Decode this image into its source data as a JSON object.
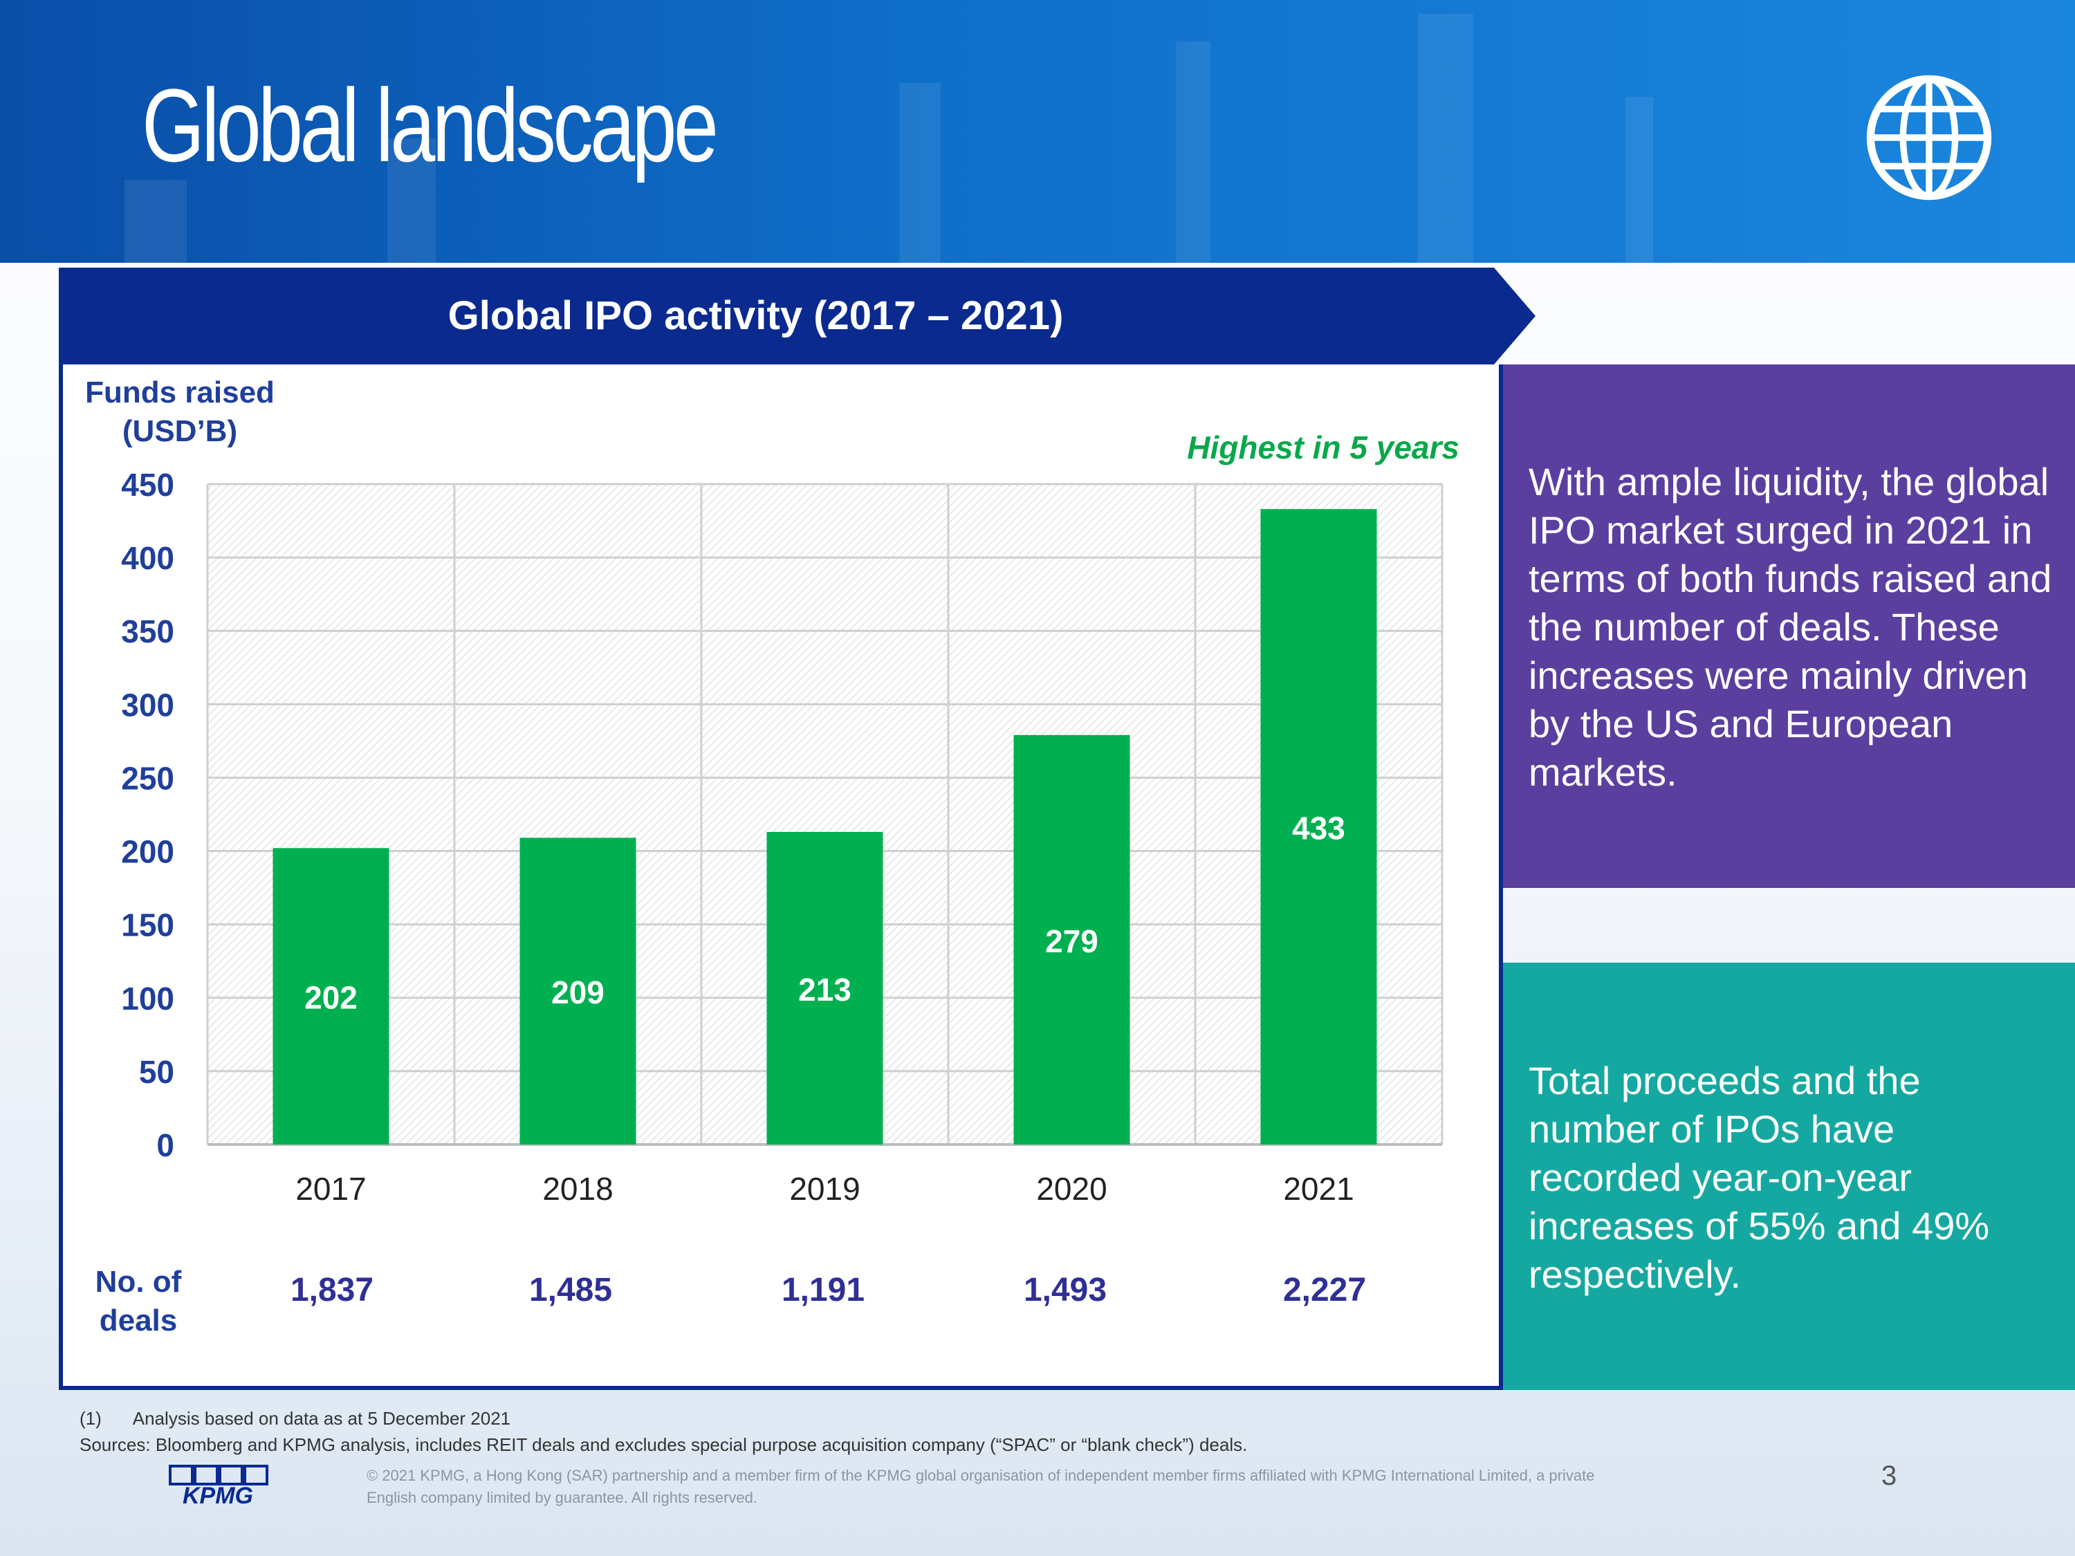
{
  "header": {
    "title": "Global landscape"
  },
  "banner": {
    "title": "Global IPO activity (2017 – 2021)"
  },
  "chart_axis": {
    "ylabel_line1": "Funds raised",
    "ylabel_line2": "(USD’B)"
  },
  "annotation": "Highest in 5 years",
  "deals": {
    "label_line1": "No. of",
    "label_line2": "deals",
    "values": [
      "1,837",
      "1,485",
      "1,191",
      "1,493",
      "2,227"
    ]
  },
  "chart_data": {
    "type": "bar",
    "title": "Global IPO activity (2017 – 2021)",
    "xlabel": "",
    "ylabel": "Funds raised (USD’B)",
    "categories": [
      "2017",
      "2018",
      "2019",
      "2020",
      "2021"
    ],
    "values": [
      202,
      209,
      213,
      279,
      433
    ],
    "ylim": [
      0,
      450
    ],
    "yticks": [
      0,
      50,
      100,
      150,
      200,
      250,
      300,
      350,
      400,
      450
    ],
    "grid": true,
    "bar_color": "#00b050"
  },
  "panels": {
    "purple": {
      "text": "With ample liquidity, the global IPO market surged in 2021 in terms of both funds raised and the number of deals. These increases were mainly driven by the US and European markets."
    },
    "teal": {
      "text": "Total proceeds and the number of IPOs have recorded year-on-year increases of 55% and 49% respectively."
    }
  },
  "footer": {
    "note_num": "(1)",
    "note": "Analysis based on data as at 5 December 2021",
    "sources": "Sources: Bloomberg and KPMG analysis, includes REIT deals and excludes special purpose acquisition company (“SPAC” or “blank check”) deals.",
    "copyright_line1": "© 2021 KPMG, a Hong Kong (SAR) partnership and a member firm of the KPMG global organisation of independent member firms affiliated with KPMG International Limited, a private",
    "copyright_line2": "English company limited by guarantee. All rights reserved.",
    "page_number": "3",
    "logo_text": "KPMG"
  },
  "colors": {
    "navy": "#0a2a8f",
    "purple": "#5a3f9f",
    "teal": "#14a8a0",
    "green": "#00b050",
    "axis_text": "#1f3f9a"
  }
}
